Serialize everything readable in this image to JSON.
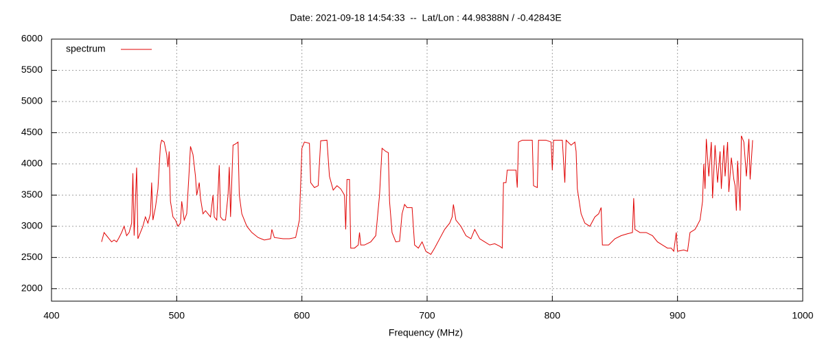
{
  "chart_data": {
    "type": "line",
    "title": "Date: 2021-09-18 14:54:33  --  Lat/Lon : 44.98388N / -0.42843E",
    "x_label": "Frequency (MHz)",
    "xlim": [
      400,
      1000
    ],
    "xticks": [
      400,
      500,
      600,
      700,
      800,
      900,
      1000
    ],
    "ylim": [
      1800,
      6000
    ],
    "yticks": [
      2000,
      2500,
      3000,
      3500,
      4000,
      4500,
      5000,
      5500,
      6000
    ],
    "grid": true,
    "legend": "top-left",
    "x": [
      440,
      442,
      444,
      446,
      448,
      450,
      452,
      454,
      456,
      458,
      460,
      462,
      464,
      465,
      466,
      468,
      469,
      471,
      473,
      475,
      477,
      479,
      480,
      481,
      483,
      485,
      487,
      488,
      490,
      492,
      493,
      494,
      495,
      497,
      499,
      501,
      503,
      504,
      506,
      508,
      510,
      511,
      513,
      515,
      516,
      518,
      519,
      521,
      523,
      525,
      527,
      529,
      530,
      532,
      534,
      535,
      537,
      539,
      541,
      542,
      543,
      545,
      547,
      549,
      550,
      552,
      556,
      560,
      565,
      570,
      575,
      576,
      578,
      585,
      590,
      595,
      598,
      600,
      602,
      606,
      607,
      610,
      613,
      615,
      620,
      622,
      625,
      628,
      631,
      634,
      635,
      636,
      638,
      639,
      642,
      645,
      646,
      647,
      650,
      655,
      659,
      662,
      664,
      667,
      669,
      670,
      672,
      675,
      678,
      680,
      682,
      684,
      688,
      690,
      693,
      696,
      699,
      703,
      706,
      710,
      714,
      718,
      720,
      721,
      723,
      727,
      731,
      735,
      738,
      742,
      746,
      750,
      754,
      758,
      760,
      761,
      763,
      764,
      768,
      771,
      772,
      773,
      776,
      780,
      784,
      785,
      788,
      789,
      795,
      799,
      800,
      801,
      808,
      810,
      811,
      815,
      818,
      819,
      820,
      823,
      826,
      830,
      834,
      837,
      839,
      840,
      845,
      850,
      855,
      860,
      864,
      865,
      866,
      870,
      875,
      880,
      884,
      888,
      892,
      895,
      897,
      899,
      900,
      905,
      908,
      910,
      914,
      918,
      920,
      921,
      922,
      923,
      925,
      927,
      928,
      930,
      932,
      934,
      935,
      937,
      938,
      940,
      941,
      943,
      945,
      946,
      947,
      948,
      950,
      951,
      953,
      955,
      957,
      958,
      960
    ],
    "series": [
      {
        "name": "spectrum",
        "color": "#e00000",
        "values": [
          2750,
          2900,
          2850,
          2800,
          2750,
          2780,
          2750,
          2820,
          2900,
          3000,
          2850,
          2900,
          3050,
          3850,
          2850,
          3940,
          2800,
          2900,
          3000,
          3150,
          3050,
          3200,
          3700,
          3100,
          3300,
          3600,
          4300,
          4380,
          4350,
          4150,
          3950,
          4200,
          3400,
          3150,
          3100,
          3000,
          3050,
          3400,
          3100,
          3200,
          3900,
          4280,
          4150,
          3800,
          3500,
          3700,
          3450,
          3200,
          3250,
          3200,
          3150,
          3500,
          3150,
          3100,
          3980,
          3150,
          3100,
          3100,
          3500,
          3950,
          3150,
          4300,
          4320,
          4350,
          3500,
          3200,
          3000,
          2900,
          2820,
          2780,
          2800,
          2950,
          2820,
          2800,
          2800,
          2820,
          3100,
          4250,
          4350,
          4330,
          3700,
          3620,
          3650,
          4370,
          4380,
          3800,
          3580,
          3650,
          3600,
          3500,
          2950,
          3750,
          3750,
          2650,
          2650,
          2700,
          2900,
          2700,
          2700,
          2750,
          2850,
          3500,
          4250,
          4200,
          4180,
          3400,
          2900,
          2750,
          2760,
          3200,
          3350,
          3300,
          3300,
          2700,
          2650,
          2750,
          2600,
          2550,
          2650,
          2800,
          2950,
          3050,
          3150,
          3350,
          3100,
          3000,
          2850,
          2800,
          2950,
          2800,
          2750,
          2700,
          2720,
          2680,
          2650,
          3700,
          3700,
          3900,
          3900,
          3900,
          3620,
          4350,
          4380,
          4380,
          4380,
          3650,
          3620,
          4380,
          4380,
          4350,
          3900,
          4380,
          4380,
          3700,
          4380,
          4300,
          4350,
          4200,
          3600,
          3200,
          3050,
          3000,
          3150,
          3200,
          3300,
          2700,
          2700,
          2800,
          2850,
          2880,
          2900,
          3450,
          2950,
          2900,
          2900,
          2850,
          2750,
          2700,
          2650,
          2650,
          2600,
          2900,
          2600,
          2620,
          2600,
          2900,
          2950,
          3100,
          3400,
          4000,
          3600,
          4400,
          3800,
          4350,
          3450,
          4300,
          3700,
          4200,
          3600,
          4300,
          3800,
          4350,
          3550,
          4100,
          3750,
          3650,
          3250,
          4050,
          3250,
          4450,
          4350,
          3800,
          4400,
          3750,
          4380
        ]
      }
    ]
  }
}
